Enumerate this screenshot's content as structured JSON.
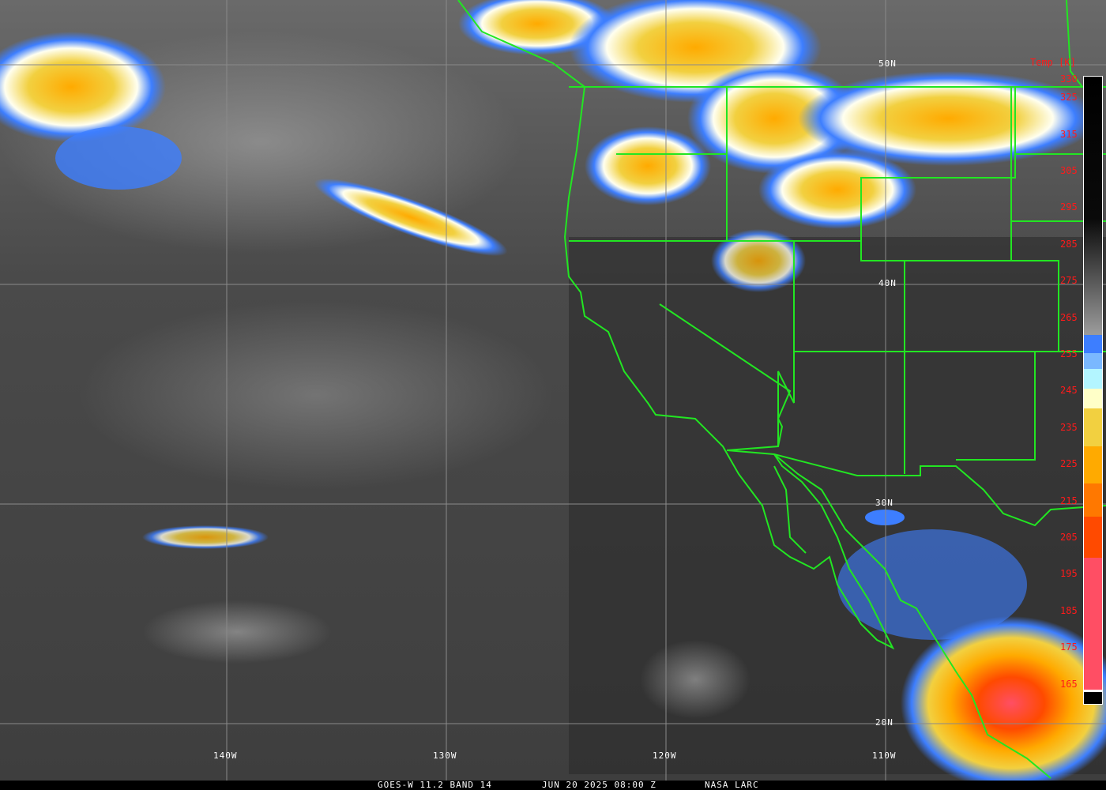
{
  "image": {
    "satellite": "GOES-W",
    "caption": {
      "product": "GOES-W 11.2 BAND 14",
      "datetime": "JUN 20 2025 08:00 Z",
      "source": "NASA LARC"
    },
    "latitude_labels": [
      "50N",
      "40N",
      "30N",
      "20N"
    ],
    "longitude_labels": [
      "140W",
      "130W",
      "120W",
      "110W"
    ],
    "colorbar": {
      "title": "Temp [K]",
      "ticks": [
        "330",
        "325",
        "315",
        "305",
        "295",
        "285",
        "275",
        "265",
        "255",
        "245",
        "235",
        "225",
        "215",
        "205",
        "195",
        "185",
        "175",
        "165"
      ],
      "colors": {
        "warm": "#000000",
        "mid": "#9a9a9a",
        "blue": "#3d7eff",
        "lightblue": "#b3f5ff",
        "cream": "#ffffc8",
        "yellow": "#f2d040",
        "orange": "#ffaa00",
        "darkorange": "#ff7800",
        "redorange": "#ff4a00",
        "pink": "#ff4e64"
      }
    },
    "boundary_color": "#22e622",
    "label_color": "#ff1a1a"
  }
}
